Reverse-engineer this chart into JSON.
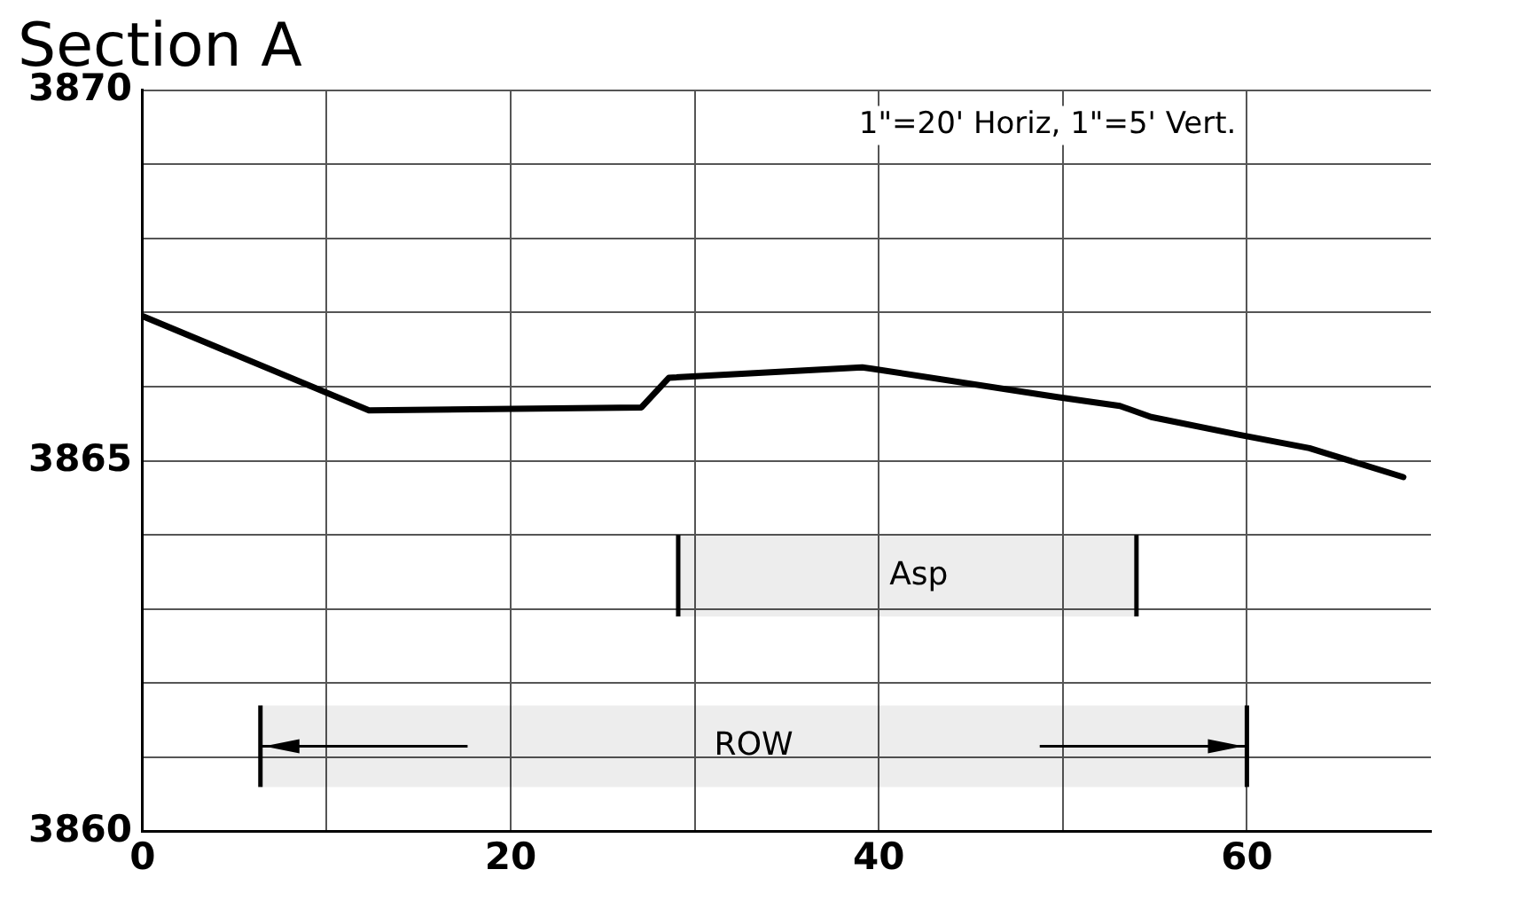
{
  "chart_data": {
    "type": "line",
    "title": "Section A",
    "x": [
      0,
      12.3,
      27.1,
      28.6,
      39.1,
      39.7,
      49.7,
      53.1,
      54.8,
      59.6,
      63.4,
      68.5
    ],
    "series": [
      {
        "color": "#000000",
        "values": [
          3866.95,
          3865.68,
          3865.72,
          3866.12,
          3866.26,
          3866.24,
          3865.86,
          3865.74,
          3865.59,
          3865.35,
          3865.17,
          3864.78
        ]
      }
    ],
    "xlim": [
      0,
      70
    ],
    "xticks": [
      0,
      {
        "value": 10,
        "label": null
      },
      20,
      {
        "value": 30,
        "label": null
      },
      40,
      {
        "value": 50,
        "label": null
      },
      60
    ],
    "ylim": [
      3860,
      3870
    ],
    "yticks": [
      3860,
      {
        "value": 3861,
        "label": null
      },
      {
        "value": 3862,
        "label": null
      },
      {
        "value": 3863,
        "label": null
      },
      {
        "value": 3864,
        "label": null
      },
      3865,
      {
        "value": 3866,
        "label": null
      },
      {
        "value": 3867,
        "label": null
      },
      {
        "value": 3868,
        "label": null
      },
      {
        "value": 3869,
        "label": null
      },
      3870
    ],
    "grid": true,
    "legend": false,
    "marker": "none",
    "line_style": "solid",
    "bands": [
      {
        "axis": "x",
        "from": 29.1,
        "to": 54,
        "label": "Asp"
      },
      {
        "axis": "x",
        "from": 6.4,
        "to": 60,
        "label": "ROW"
      }
    ],
    "annotations": [
      "1\"=20' Horiz, 1\"=5' Vert."
    ]
  }
}
